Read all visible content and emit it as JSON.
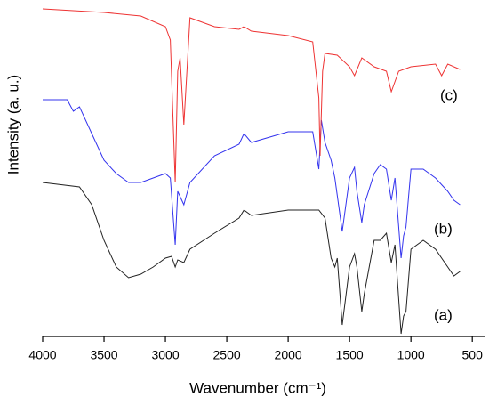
{
  "chart_data": {
    "type": "line",
    "xlabel": "Wavenumber (cm⁻¹)",
    "ylabel": "Intensity (a. u.)",
    "xlim": [
      4000,
      400
    ],
    "xticks": [
      4000,
      3500,
      3000,
      2500,
      2000,
      1500,
      1000,
      500
    ],
    "ylim": [
      0,
      378
    ],
    "annotations": [
      "(a)",
      "(b)",
      "(c)"
    ],
    "series": [
      {
        "name": "(a)",
        "color": "#222222",
        "x": [
          4000,
          3700,
          3600,
          3500,
          3400,
          3300,
          3200,
          3100,
          3000,
          2950,
          2920,
          2900,
          2850,
          2800,
          2600,
          2400,
          2360,
          2300,
          2000,
          1750,
          1700,
          1650,
          1620,
          1600,
          1560,
          1500,
          1460,
          1440,
          1400,
          1380,
          1300,
          1250,
          1200,
          1160,
          1130,
          1080,
          1060,
          1040,
          1000,
          900,
          800,
          700,
          650,
          600
        ],
        "values": [
          173,
          168,
          148,
          108,
          78,
          66,
          70,
          78,
          88,
          90,
          78,
          86,
          83,
          98,
          116,
          133,
          142,
          136,
          142,
          142,
          133,
          88,
          78,
          88,
          13,
          78,
          93,
          78,
          28,
          48,
          108,
          108,
          116,
          83,
          103,
          3,
          23,
          28,
          98,
          108,
          98,
          78,
          68,
          73
        ]
      },
      {
        "name": "(b)",
        "color": "#3333ee",
        "x": [
          4000,
          3800,
          3750,
          3700,
          3600,
          3500,
          3400,
          3300,
          3200,
          3100,
          3000,
          2960,
          2920,
          2900,
          2850,
          2800,
          2600,
          2400,
          2360,
          2300,
          2000,
          1800,
          1750,
          1730,
          1700,
          1650,
          1620,
          1560,
          1500,
          1460,
          1440,
          1400,
          1380,
          1300,
          1250,
          1200,
          1160,
          1130,
          1080,
          1060,
          1040,
          1000,
          900,
          800,
          700,
          650,
          600
        ],
        "values": [
          266,
          266,
          253,
          258,
          228,
          198,
          183,
          173,
          173,
          178,
          183,
          178,
          103,
          163,
          148,
          173,
          203,
          216,
          228,
          218,
          230,
          230,
          188,
          243,
          218,
          198,
          178,
          118,
          178,
          190,
          163,
          128,
          148,
          183,
          193,
          188,
          153,
          178,
          88,
          113,
          123,
          188,
          188,
          178,
          163,
          153,
          148
        ]
      },
      {
        "name": "(c)",
        "color": "#ee3333",
        "x": [
          4000,
          3500,
          3200,
          3000,
          2960,
          2920,
          2900,
          2880,
          2850,
          2800,
          2600,
          2400,
          2360,
          2300,
          2000,
          1800,
          1750,
          1740,
          1720,
          1700,
          1600,
          1500,
          1460,
          1400,
          1300,
          1200,
          1160,
          1100,
          1000,
          800,
          750,
          700,
          600
        ],
        "values": [
          368,
          364,
          360,
          348,
          333,
          173,
          298,
          313,
          238,
          358,
          348,
          345,
          348,
          343,
          338,
          331,
          268,
          203,
          298,
          318,
          316,
          303,
          293,
          313,
          303,
          298,
          275,
          298,
          303,
          306,
          293,
          306,
          300
        ]
      }
    ]
  }
}
